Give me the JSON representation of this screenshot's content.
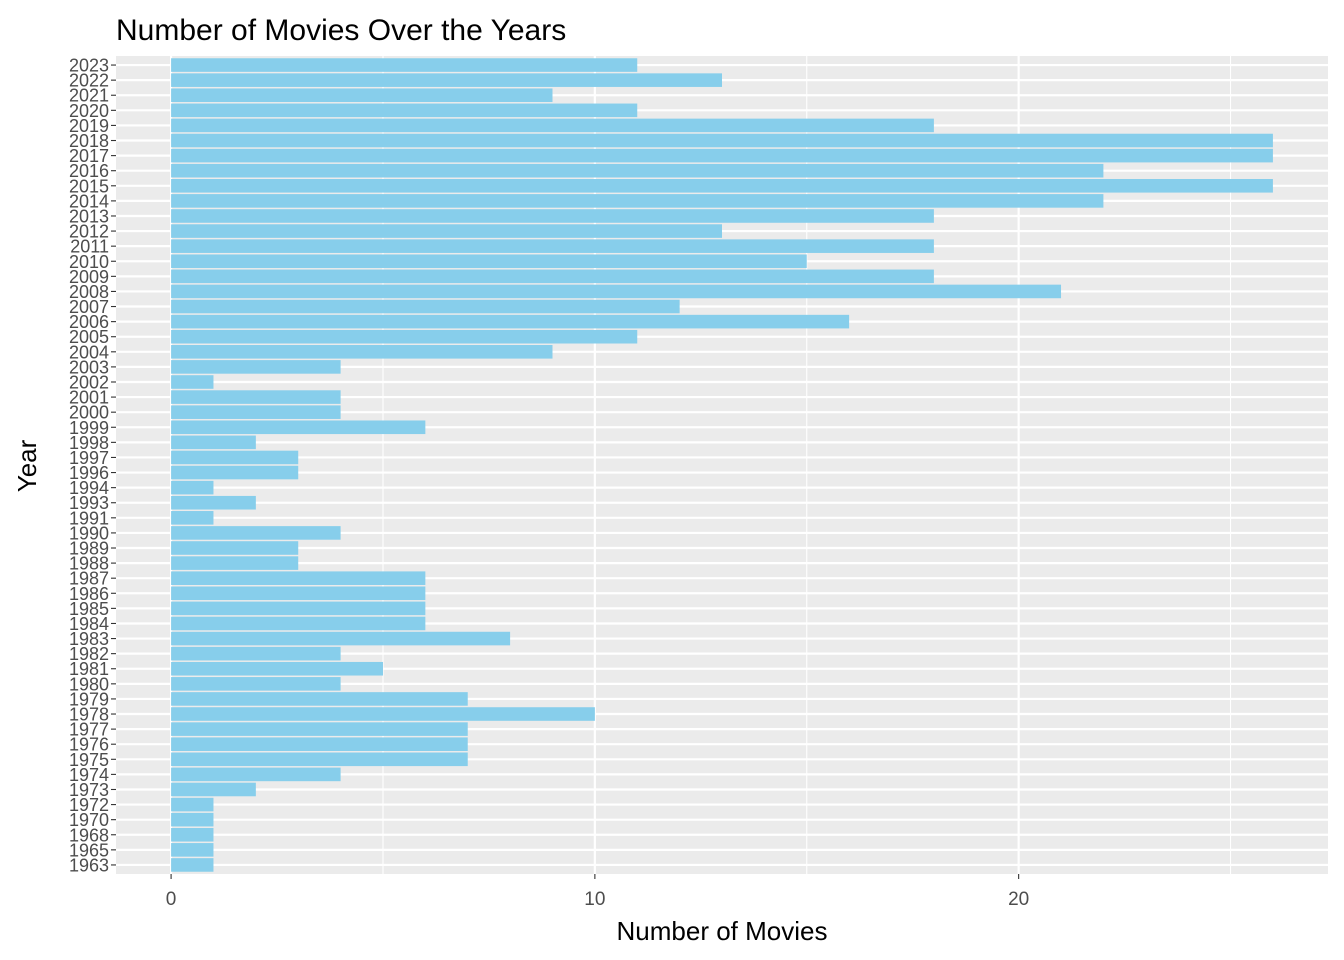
{
  "chart_data": {
    "type": "bar",
    "orientation": "horizontal",
    "title": "Number of Movies Over the Years",
    "xlabel": "Number of Movies",
    "ylabel": "Year",
    "categories": [
      "1963",
      "1965",
      "1968",
      "1970",
      "1972",
      "1973",
      "1974",
      "1975",
      "1976",
      "1977",
      "1978",
      "1979",
      "1980",
      "1981",
      "1982",
      "1983",
      "1984",
      "1985",
      "1986",
      "1987",
      "1988",
      "1989",
      "1990",
      "1991",
      "1993",
      "1994",
      "1996",
      "1997",
      "1998",
      "1999",
      "2000",
      "2001",
      "2002",
      "2003",
      "2004",
      "2005",
      "2006",
      "2007",
      "2008",
      "2009",
      "2010",
      "2011",
      "2012",
      "2013",
      "2014",
      "2015",
      "2016",
      "2017",
      "2018",
      "2019",
      "2020",
      "2021",
      "2022",
      "2023"
    ],
    "values": [
      1,
      1,
      1,
      1,
      1,
      2,
      4,
      7,
      7,
      7,
      10,
      7,
      4,
      5,
      4,
      8,
      6,
      6,
      6,
      6,
      3,
      3,
      4,
      1,
      2,
      1,
      3,
      3,
      2,
      6,
      4,
      4,
      1,
      4,
      9,
      11,
      16,
      12,
      21,
      18,
      15,
      18,
      13,
      18,
      22,
      26,
      22,
      26,
      26,
      18,
      11,
      9,
      13,
      11
    ],
    "xlim": [
      -1.3,
      27.3
    ],
    "xticks": [
      0,
      10,
      20
    ],
    "grid": true,
    "legend": "none",
    "bar_color": "#87CEEB",
    "panel_color": "#EBEBEB",
    "grid_color": "#FFFFFF"
  }
}
